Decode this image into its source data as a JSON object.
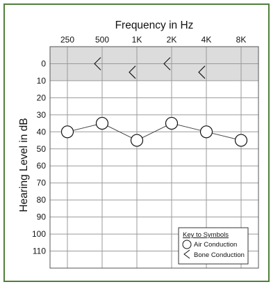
{
  "chart_data": {
    "type": "line",
    "title": "Frequency in Hz",
    "xlabel": "Frequency in Hz",
    "ylabel": "Hearing Level in dB",
    "categories": [
      "250",
      "500",
      "1K",
      "2K",
      "4K",
      "8K"
    ],
    "y_ticks": [
      0,
      10,
      20,
      30,
      40,
      50,
      60,
      70,
      80,
      90,
      100,
      110
    ],
    "ylim": [
      -10,
      120
    ],
    "y_inverted": true,
    "grid": true,
    "shaded_band": {
      "from": -10,
      "to": 10,
      "color": "#dcdcdc"
    },
    "series": [
      {
        "name": "Air Conduction",
        "symbol": "circle",
        "connected": true,
        "values": [
          40,
          35,
          45,
          35,
          40,
          45
        ]
      },
      {
        "name": "Bone Conduction",
        "symbol": "left-angle",
        "connected": false,
        "values": [
          null,
          0,
          5,
          0,
          5,
          null
        ]
      }
    ],
    "legend": {
      "title": "Key to Symbols",
      "position": "bottom-right",
      "entries": [
        "Air Conduction",
        "Bone Conduction"
      ]
    },
    "colors": {
      "frame": "#4f7f3a",
      "grid": "#9a9a9a",
      "band": "#dcdcdc",
      "marks": "#111111"
    }
  }
}
